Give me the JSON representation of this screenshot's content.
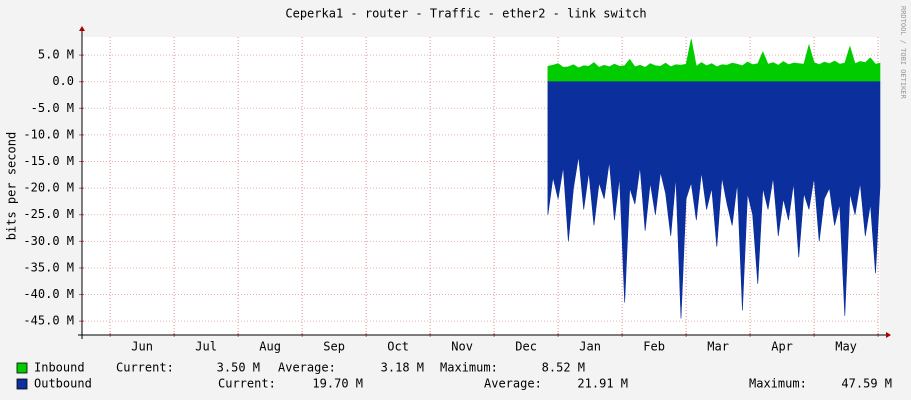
{
  "chart_data": {
    "type": "area",
    "title": "Ceperka1 - router - Traffic - ether2 - link switch",
    "y_label": "bits per second",
    "credit": "RRDTOOL / TOBI OETIKER",
    "x": [
      6.84,
      6.92,
      7.0,
      7.08,
      7.16,
      7.24,
      7.32,
      7.4,
      7.48,
      7.56,
      7.64,
      7.72,
      7.8,
      7.88,
      7.96,
      8.04,
      8.12,
      8.2,
      8.28,
      8.36,
      8.44,
      8.52,
      8.6,
      8.68,
      8.76,
      8.84,
      8.92,
      9.0,
      9.08,
      9.16,
      9.24,
      9.32,
      9.4,
      9.48,
      9.56,
      9.64,
      9.72,
      9.8,
      9.88,
      9.96,
      10.04,
      10.12,
      10.2,
      10.28,
      10.36,
      10.44,
      10.52,
      10.6,
      10.68,
      10.76,
      10.84,
      10.92,
      11.0,
      11.08,
      11.16,
      11.24,
      11.32,
      11.4,
      11.48,
      11.56,
      11.64,
      11.72,
      11.8,
      11.88,
      11.96,
      12.03
    ],
    "series": [
      {
        "name": "Inbound",
        "color": "#00cc00",
        "values": [
          2900000.0,
          3100000.0,
          3400000.0,
          2700000.0,
          2800000.0,
          3200000.0,
          2600000.0,
          3000000.0,
          2900000.0,
          3600000.0,
          2700000.0,
          3100000.0,
          2800000.0,
          3300000.0,
          2900000.0,
          3000000.0,
          4200000.0,
          2800000.0,
          3100000.0,
          2700000.0,
          3400000.0,
          3000000.0,
          2900000.0,
          3500000.0,
          2800000.0,
          3200000.0,
          3100000.0,
          3300000.0,
          8000000.0,
          2900000.0,
          3600000.0,
          3000000.0,
          3400000.0,
          2800000.0,
          3200000.0,
          3100000.0,
          3500000.0,
          3300000.0,
          3000000.0,
          3700000.0,
          3200000.0,
          3400000.0,
          5600000.0,
          3300000.0,
          3600000.0,
          3100000.0,
          3800000.0,
          3200000.0,
          3500000.0,
          3400000.0,
          3300000.0,
          6900000.0,
          3600000.0,
          3200000.0,
          3700000.0,
          3400000.0,
          3900000.0,
          3300000.0,
          3500000.0,
          6600000.0,
          3400000.0,
          3800000.0,
          3600000.0,
          4500000.0,
          3300000.0,
          3500000.0
        ],
        "stats": [
          {
            "label": "Current:",
            "value": "3.50 M"
          },
          {
            "label": "Average:",
            "value": "3.18 M"
          },
          {
            "label": "Maximum:",
            "value": "8.52 M"
          }
        ]
      },
      {
        "name": "Outbound",
        "color": "#0b2f9c",
        "values": [
          -25000000.0,
          -18000000.0,
          -22000000.0,
          -16000000.0,
          -30000000.0,
          -20000000.0,
          -14000000.0,
          -24000000.0,
          -17000000.0,
          -27000000.0,
          -19000000.0,
          -22000000.0,
          -15000000.0,
          -26000000.0,
          -18000000.0,
          -41500000.0,
          -20000000.0,
          -23000000.0,
          -16000000.0,
          -28000000.0,
          -19000000.0,
          -25000000.0,
          -17000000.0,
          -21000000.0,
          -29000000.0,
          -18000000.0,
          -44500000.0,
          -22000000.0,
          -19000000.0,
          -26000000.0,
          -17000000.0,
          -24000000.0,
          -20000000.0,
          -31000000.0,
          -18000000.0,
          -23000000.0,
          -27000000.0,
          -19000000.0,
          -43000000.0,
          -21000000.0,
          -25000000.0,
          -38000000.0,
          -20000000.0,
          -24000000.0,
          -18000000.0,
          -29000000.0,
          -22000000.0,
          -26000000.0,
          -19000000.0,
          -33000000.0,
          -21000000.0,
          -24000000.0,
          -18000000.0,
          -30000000.0,
          -22000000.0,
          -20000000.0,
          -27000000.0,
          -23000000.0,
          -44000000.0,
          -21000000.0,
          -25000000.0,
          -19000000.0,
          -29000000.0,
          -23000000.0,
          -36000000.0,
          -19700000.0
        ],
        "stats": [
          {
            "label": "Current:",
            "value": "19.70 M"
          },
          {
            "label": "Average:",
            "value": "21.91 M"
          },
          {
            "label": "Maximum:",
            "value": "47.59 M"
          }
        ]
      }
    ],
    "xlim": [
      -0.44,
      12.03
    ],
    "xticks": [
      {
        "value": 0.5,
        "label": "Jun"
      },
      {
        "value": 1.5,
        "label": "Jul"
      },
      {
        "value": 2.5,
        "label": "Aug"
      },
      {
        "value": 3.5,
        "label": "Sep"
      },
      {
        "value": 4.5,
        "label": "Oct"
      },
      {
        "value": 5.5,
        "label": "Nov"
      },
      {
        "value": 6.5,
        "label": "Dec"
      },
      {
        "value": 7.5,
        "label": "Jan"
      },
      {
        "value": 8.5,
        "label": "Feb"
      },
      {
        "value": 9.5,
        "label": "Mar"
      },
      {
        "value": 10.5,
        "label": "Apr"
      },
      {
        "value": 11.5,
        "label": "May"
      }
    ],
    "xgrid": [
      0,
      1,
      2,
      3,
      4,
      5,
      6,
      7,
      8,
      9,
      10,
      11,
      12
    ],
    "ylim": [
      -47600000,
      8400000
    ],
    "yticks": [
      {
        "value": 5000000,
        "label": "5.0 M"
      },
      {
        "value": 0,
        "label": "0.0"
      },
      {
        "value": -5000000,
        "label": "-5.0 M"
      },
      {
        "value": -10000000,
        "label": "-10.0 M"
      },
      {
        "value": -15000000,
        "label": "-15.0 M"
      },
      {
        "value": -20000000,
        "label": "-20.0 M"
      },
      {
        "value": -25000000,
        "label": "-25.0 M"
      },
      {
        "value": -30000000,
        "label": "-30.0 M"
      },
      {
        "value": -35000000,
        "label": "-35.0 M"
      },
      {
        "value": -40000000,
        "label": "-40.0 M"
      },
      {
        "value": -45000000,
        "label": "-45.0 M"
      }
    ],
    "grid": true
  }
}
